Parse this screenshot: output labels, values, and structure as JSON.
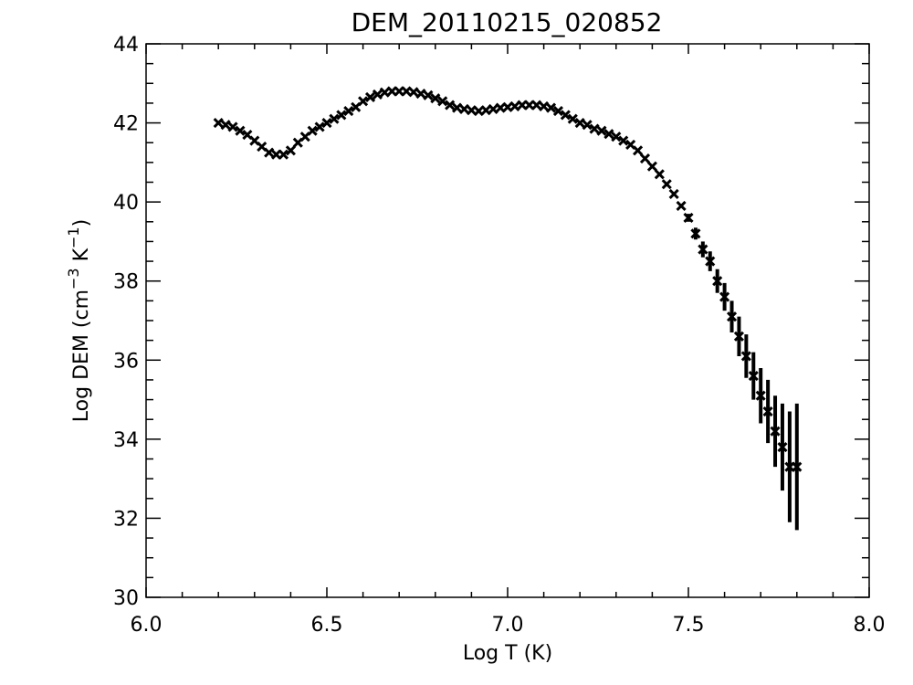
{
  "chart_data": {
    "type": "scatter",
    "title": "DEM_20110215_020852",
    "xlabel": "Log T (K)",
    "ylabel": {
      "main": "Log DEM (cm",
      "exp1": "−3",
      "mid": " K",
      "exp2": "−1",
      "end": ")"
    },
    "xlim": [
      6.0,
      8.0
    ],
    "ylim": [
      30,
      44
    ],
    "xticks": [
      "6.0",
      "6.5",
      "7.0",
      "7.5",
      "8.0"
    ],
    "yticks": [
      "30",
      "32",
      "34",
      "36",
      "38",
      "40",
      "42",
      "44"
    ],
    "grid": false,
    "marker": "x",
    "series": [
      {
        "x": [
          6.2,
          6.22,
          6.24,
          6.26,
          6.28,
          6.3,
          6.32,
          6.34,
          6.36,
          6.38,
          6.4,
          6.42,
          6.44,
          6.46,
          6.48,
          6.5,
          6.52,
          6.54,
          6.56,
          6.58,
          6.6,
          6.62,
          6.64,
          6.66,
          6.68,
          6.7,
          6.72,
          6.74,
          6.76,
          6.78,
          6.8,
          6.82,
          6.84,
          6.86,
          6.88,
          6.9,
          6.92,
          6.94,
          6.96,
          6.98,
          7.0,
          7.02,
          7.04,
          7.06,
          7.08,
          7.1,
          7.12,
          7.14,
          7.16,
          7.18,
          7.2,
          7.22,
          7.24,
          7.26,
          7.28,
          7.3,
          7.32,
          7.34,
          7.36,
          7.38,
          7.4,
          7.42,
          7.44,
          7.46,
          7.48,
          7.5,
          7.52,
          7.54,
          7.56,
          7.58,
          7.6,
          7.62,
          7.64,
          7.66,
          7.68,
          7.7,
          7.72,
          7.74,
          7.76,
          7.78,
          7.8
        ],
        "y": [
          42.0,
          41.95,
          41.9,
          41.8,
          41.7,
          41.55,
          41.4,
          41.25,
          41.2,
          41.2,
          41.3,
          41.5,
          41.65,
          41.8,
          41.9,
          42.0,
          42.1,
          42.2,
          42.3,
          42.4,
          42.55,
          42.65,
          42.72,
          42.77,
          42.8,
          42.8,
          42.8,
          42.78,
          42.74,
          42.7,
          42.62,
          42.55,
          42.45,
          42.38,
          42.35,
          42.32,
          42.3,
          42.32,
          42.35,
          42.38,
          42.4,
          42.42,
          42.45,
          42.45,
          42.45,
          42.42,
          42.38,
          42.3,
          42.2,
          42.1,
          42.0,
          41.95,
          41.85,
          41.8,
          41.72,
          41.65,
          41.55,
          41.45,
          41.3,
          41.1,
          40.9,
          40.7,
          40.45,
          40.2,
          39.9,
          39.6,
          39.2,
          38.8,
          38.5,
          38.0,
          37.6,
          37.1,
          36.6,
          36.1,
          35.6,
          35.1,
          34.7,
          34.2,
          33.8,
          33.3,
          33.3
        ],
        "err": [
          0,
          0,
          0,
          0,
          0,
          0,
          0,
          0,
          0,
          0,
          0,
          0,
          0,
          0,
          0,
          0,
          0,
          0,
          0,
          0,
          0,
          0,
          0,
          0,
          0,
          0,
          0,
          0,
          0,
          0,
          0,
          0,
          0,
          0,
          0,
          0,
          0,
          0,
          0,
          0,
          0,
          0,
          0,
          0,
          0,
          0,
          0,
          0,
          0,
          0,
          0,
          0,
          0,
          0,
          0,
          0,
          0,
          0,
          0,
          0,
          0,
          0,
          0,
          0,
          0.05,
          0.1,
          0.15,
          0.2,
          0.25,
          0.3,
          0.35,
          0.4,
          0.5,
          0.55,
          0.6,
          0.7,
          0.8,
          0.9,
          1.1,
          1.4,
          1.6
        ]
      }
    ]
  }
}
